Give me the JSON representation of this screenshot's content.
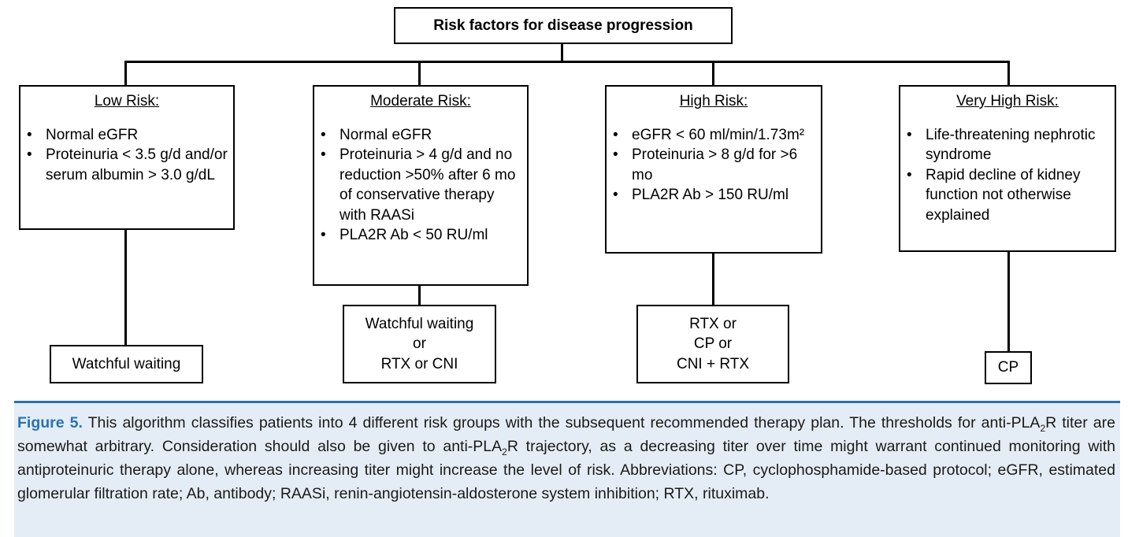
{
  "title": "Risk factors for disease progression",
  "risk_groups": [
    {
      "heading": "Low Risk:",
      "criteria": [
        "Normal eGFR",
        "Proteinuria < 3.5 g/d and/or serum albumin > 3.0 g/dL"
      ],
      "therapy": [
        "Watchful waiting"
      ]
    },
    {
      "heading": "Moderate Risk:",
      "criteria": [
        "Normal eGFR",
        "Proteinuria > 4 g/d and no reduction >50% after 6 mo of conservative therapy with RAASi",
        "PLA2R Ab < 50 RU/ml"
      ],
      "therapy": [
        "Watchful waiting",
        "or",
        "RTX or CNI"
      ]
    },
    {
      "heading": "High Risk:",
      "criteria": [
        "eGFR < 60 ml/min/1.73m²",
        "Proteinuria > 8 g/d for >6 mo",
        "PLA2R Ab > 150 RU/ml"
      ],
      "therapy": [
        "RTX or",
        "CP or",
        "CNI + RTX"
      ]
    },
    {
      "heading": "Very High Risk:",
      "criteria": [
        "Life-threatening nephrotic syndrome",
        "Rapid decline of kidney function not otherwise explained"
      ],
      "therapy": [
        "CP"
      ]
    }
  ],
  "caption": {
    "label": "Figure 5.",
    "part1": " This algorithm classifies patients into 4 different risk groups with the subsequent recommended therapy plan. The thresholds for anti-PLA",
    "sub1": "2",
    "part2": "R titer are somewhat arbitrary. Consideration should also be given to anti-PLA",
    "sub2": "2",
    "part3": "R trajectory, as a decreasing titer over time might warrant continued monitoring with antiproteinuric therapy alone, whereas increasing titer might increase the level of risk. Abbreviations: CP, cyclophosphamide-based protocol; eGFR, estimated glomerular filtration rate; Ab, antibody; RAASi, renin-angiotensin-aldosterone system inhibition; RTX, rituximab."
  },
  "colors": {
    "accent": "#2772b3",
    "caption_bg": "#e4edf5"
  }
}
